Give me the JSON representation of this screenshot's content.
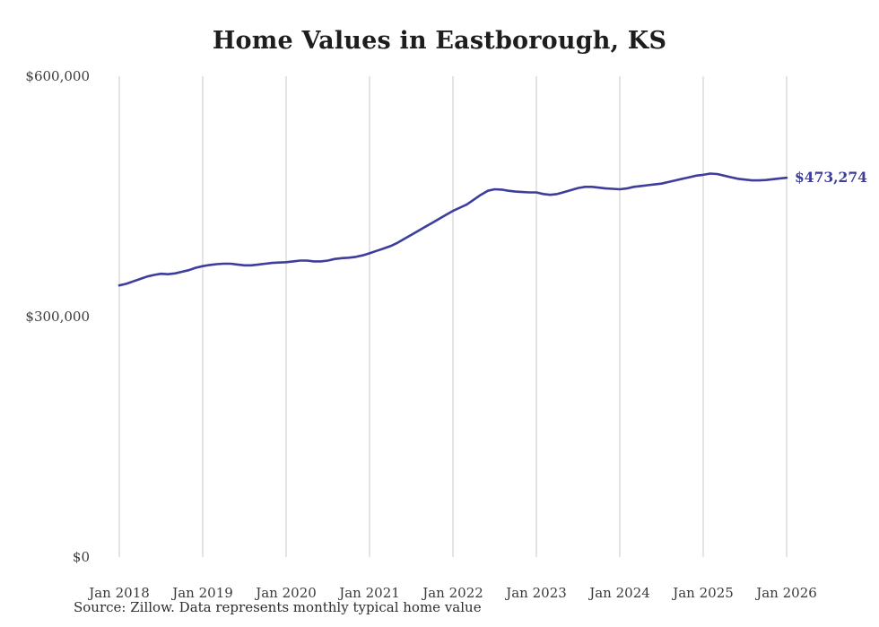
{
  "source_text": "Source: Zillow. Data represents monthly typical home value",
  "chart_data": {
    "type": "line",
    "title": "Home Values in Eastborough, KS",
    "xlabel": "",
    "ylabel": "",
    "ylim": [
      0,
      600000
    ],
    "grid": "vertical-only",
    "line_color": "#3d3d9e",
    "gridline_color": "#c9c9c9",
    "end_label": "$473,274",
    "end_value": 473274,
    "x_start": "Jan 2018",
    "x_end": "Jan 2026",
    "x_interval": "monthly",
    "x_tick_labels": [
      "Jan 2018",
      "Jan 2019",
      "Jan 2020",
      "Jan 2021",
      "Jan 2022",
      "Jan 2023",
      "Jan 2024",
      "Jan 2025",
      "Jan 2026"
    ],
    "y_ticks": [
      {
        "value": 600000,
        "label": "$600,000"
      },
      {
        "value": 300000,
        "label": "$300,000"
      },
      {
        "value": 0,
        "label": "$0"
      }
    ],
    "values": [
      339000,
      341000,
      344000,
      347000,
      350000,
      352000,
      353500,
      353000,
      354000,
      356000,
      358000,
      361000,
      363000,
      364500,
      365500,
      366000,
      366000,
      365000,
      364000,
      364000,
      365000,
      366000,
      367000,
      367500,
      368000,
      369000,
      370000,
      370000,
      369000,
      369000,
      370000,
      372000,
      373000,
      373500,
      374500,
      376500,
      379000,
      382000,
      385000,
      388000,
      392000,
      397000,
      402000,
      407000,
      412000,
      417000,
      422000,
      427000,
      432000,
      436000,
      440000,
      446000,
      452000,
      457000,
      459000,
      458500,
      457000,
      456000,
      455500,
      455000,
      455000,
      453000,
      452000,
      453000,
      455500,
      458000,
      460500,
      462000,
      462000,
      461000,
      460000,
      459500,
      459000,
      460000,
      462000,
      463000,
      464000,
      465000,
      466000,
      468000,
      470000,
      472000,
      474000,
      476000,
      477000,
      478500,
      478000,
      476000,
      474000,
      472000,
      471000,
      470000,
      470000,
      470500,
      471500,
      472500,
      473274
    ]
  }
}
